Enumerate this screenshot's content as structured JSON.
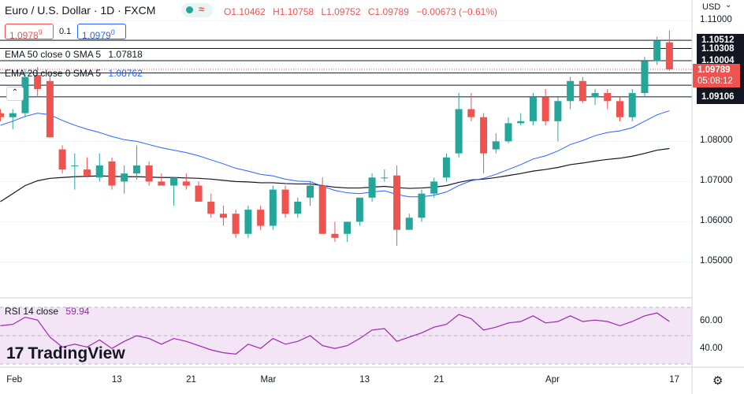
{
  "header": {
    "symbol": "Euro / U.S. Dollar · 1D · FXCM",
    "badge": "≈",
    "open": "O1.10462",
    "high": "H1.10758",
    "low": "L1.09752",
    "close": "C1.09789",
    "change": "−0.00673 (−0.61%)",
    "currency": "USD"
  },
  "order": {
    "sell": "1.0978",
    "sell_sup": "9",
    "spread": "0.1",
    "buy": "1.0979",
    "buy_sup": "0"
  },
  "indicators": {
    "ema50_label": "EMA 50 close 0 SMA 5",
    "ema50_value": "1.07818",
    "ema20_label": "EMA 20 close 0 SMA 5",
    "ema20_value": "1.08762",
    "rsi_label": "RSI 14 close",
    "rsi_value": "59.94"
  },
  "price_axis": {
    "ticks": [
      "1.11000",
      "1.08000",
      "1.07000",
      "1.06000",
      "1.05000"
    ],
    "levels": [
      "1.10512",
      "1.10308",
      "1.10004",
      "1.09699",
      "1.09394",
      "1.09106"
    ],
    "last_price": "1.09789",
    "countdown": "05:08:12"
  },
  "rsi_axis": {
    "ticks": [
      "60.00",
      "40.00"
    ]
  },
  "time_axis": {
    "labels": [
      "Feb",
      "13",
      "21",
      "Mar",
      "13",
      "21",
      "Apr",
      "17"
    ]
  },
  "branding": {
    "logo_mark": "17",
    "logo_text": "TradingView"
  },
  "colors": {
    "up": "#26a69a",
    "down": "#ef5350",
    "ema20": "#2962ff",
    "ema50": "#131722",
    "rsi": "#9c27b0",
    "rsi_band": "#f3e5f5"
  },
  "chart_data": {
    "type": "candlestick",
    "timeframe": "1D",
    "ylim": [
      1.045,
      1.112
    ],
    "candles": [
      {
        "o": 1.087,
        "h": 1.088,
        "l": 1.085,
        "c": 1.086
      },
      {
        "o": 1.086,
        "h": 1.088,
        "l": 1.083,
        "c": 1.087
      },
      {
        "o": 1.087,
        "h": 1.098,
        "l": 1.086,
        "c": 1.096
      },
      {
        "o": 1.0965,
        "h": 1.0985,
        "l": 1.091,
        "c": 1.093
      },
      {
        "o": 1.095,
        "h": 1.097,
        "l": 1.081,
        "c": 1.081
      },
      {
        "o": 1.078,
        "h": 1.079,
        "l": 1.072,
        "c": 1.073
      },
      {
        "o": 1.074,
        "h": 1.077,
        "l": 1.068,
        "c": 1.074
      },
      {
        "o": 1.073,
        "h": 1.076,
        "l": 1.071,
        "c": 1.0715
      },
      {
        "o": 1.071,
        "h": 1.077,
        "l": 1.07,
        "c": 1.074
      },
      {
        "o": 1.075,
        "h": 1.076,
        "l": 1.068,
        "c": 1.069
      },
      {
        "o": 1.07,
        "h": 1.074,
        "l": 1.067,
        "c": 1.072
      },
      {
        "o": 1.072,
        "h": 1.079,
        "l": 1.0705,
        "c": 1.074
      },
      {
        "o": 1.074,
        "h": 1.075,
        "l": 1.069,
        "c": 1.07
      },
      {
        "o": 1.07,
        "h": 1.072,
        "l": 1.069,
        "c": 1.069
      },
      {
        "o": 1.069,
        "h": 1.071,
        "l": 1.064,
        "c": 1.071
      },
      {
        "o": 1.07,
        "h": 1.072,
        "l": 1.068,
        "c": 1.069
      },
      {
        "o": 1.069,
        "h": 1.07,
        "l": 1.065,
        "c": 1.065
      },
      {
        "o": 1.065,
        "h": 1.067,
        "l": 1.061,
        "c": 1.062
      },
      {
        "o": 1.062,
        "h": 1.064,
        "l": 1.059,
        "c": 1.061
      },
      {
        "o": 1.062,
        "h": 1.063,
        "l": 1.056,
        "c": 1.057
      },
      {
        "o": 1.057,
        "h": 1.064,
        "l": 1.056,
        "c": 1.063
      },
      {
        "o": 1.063,
        "h": 1.064,
        "l": 1.058,
        "c": 1.059
      },
      {
        "o": 1.059,
        "h": 1.069,
        "l": 1.058,
        "c": 1.068
      },
      {
        "o": 1.068,
        "h": 1.069,
        "l": 1.061,
        "c": 1.062
      },
      {
        "o": 1.062,
        "h": 1.066,
        "l": 1.061,
        "c": 1.065
      },
      {
        "o": 1.066,
        "h": 1.07,
        "l": 1.064,
        "c": 1.069
      },
      {
        "o": 1.069,
        "h": 1.071,
        "l": 1.057,
        "c": 1.057
      },
      {
        "o": 1.057,
        "h": 1.06,
        "l": 1.055,
        "c": 1.056
      },
      {
        "o": 1.057,
        "h": 1.06,
        "l": 1.055,
        "c": 1.06
      },
      {
        "o": 1.06,
        "h": 1.066,
        "l": 1.059,
        "c": 1.066
      },
      {
        "o": 1.066,
        "h": 1.072,
        "l": 1.065,
        "c": 1.071
      },
      {
        "o": 1.071,
        "h": 1.073,
        "l": 1.07,
        "c": 1.071
      },
      {
        "o": 1.0715,
        "h": 1.074,
        "l": 1.054,
        "c": 1.058
      },
      {
        "o": 1.058,
        "h": 1.062,
        "l": 1.058,
        "c": 1.061
      },
      {
        "o": 1.061,
        "h": 1.068,
        "l": 1.06,
        "c": 1.067
      },
      {
        "o": 1.067,
        "h": 1.071,
        "l": 1.066,
        "c": 1.07
      },
      {
        "o": 1.071,
        "h": 1.077,
        "l": 1.07,
        "c": 1.076
      },
      {
        "o": 1.077,
        "h": 1.092,
        "l": 1.076,
        "c": 1.088
      },
      {
        "o": 1.088,
        "h": 1.092,
        "l": 1.085,
        "c": 1.086
      },
      {
        "o": 1.086,
        "h": 1.087,
        "l": 1.072,
        "c": 1.077
      },
      {
        "o": 1.078,
        "h": 1.082,
        "l": 1.077,
        "c": 1.08
      },
      {
        "o": 1.08,
        "h": 1.086,
        "l": 1.0795,
        "c": 1.0845
      },
      {
        "o": 1.0845,
        "h": 1.087,
        "l": 1.084,
        "c": 1.085
      },
      {
        "o": 1.085,
        "h": 1.092,
        "l": 1.084,
        "c": 1.091
      },
      {
        "o": 1.091,
        "h": 1.093,
        "l": 1.084,
        "c": 1.085
      },
      {
        "o": 1.085,
        "h": 1.091,
        "l": 1.08,
        "c": 1.09
      },
      {
        "o": 1.09,
        "h": 1.096,
        "l": 1.088,
        "c": 1.095
      },
      {
        "o": 1.095,
        "h": 1.096,
        "l": 1.0895,
        "c": 1.09
      },
      {
        "o": 1.091,
        "h": 1.093,
        "l": 1.089,
        "c": 1.092
      },
      {
        "o": 1.092,
        "h": 1.093,
        "l": 1.088,
        "c": 1.09
      },
      {
        "o": 1.09,
        "h": 1.091,
        "l": 1.085,
        "c": 1.086
      },
      {
        "o": 1.086,
        "h": 1.093,
        "l": 1.085,
        "c": 1.092
      },
      {
        "o": 1.092,
        "h": 1.101,
        "l": 1.091,
        "c": 1.1
      },
      {
        "o": 1.1,
        "h": 1.106,
        "l": 1.099,
        "c": 1.105
      },
      {
        "o": 1.10462,
        "h": 1.10758,
        "l": 1.09752,
        "c": 1.09789
      }
    ],
    "ema20": [
      1.084,
      1.085,
      1.0862,
      1.087,
      1.0866,
      1.0852,
      1.084,
      1.083,
      1.0822,
      1.0812,
      1.0804,
      1.08,
      1.0792,
      1.0784,
      1.0778,
      1.0772,
      1.0764,
      1.0754,
      1.0744,
      1.0733,
      1.0726,
      1.0718,
      1.0714,
      1.0706,
      1.0701,
      1.07,
      1.0688,
      1.0678,
      1.0672,
      1.067,
      1.0674,
      1.0677,
      1.0668,
      1.0662,
      1.0662,
      1.0666,
      1.0674,
      1.069,
      1.0702,
      1.0708,
      1.0718,
      1.073,
      1.0742,
      1.0756,
      1.0764,
      1.0776,
      1.0792,
      1.0802,
      1.0814,
      1.0822,
      1.0826,
      1.0834,
      1.085,
      1.0866,
      1.0876
    ],
    "ema50": [
      1.065,
      1.067,
      1.069,
      1.0702,
      1.0708,
      1.071,
      1.0712,
      1.0713,
      1.0714,
      1.0713,
      1.0712,
      1.0712,
      1.0711,
      1.071,
      1.071,
      1.0709,
      1.0708,
      1.0706,
      1.0703,
      1.07,
      1.0699,
      1.0697,
      1.0697,
      1.0695,
      1.0694,
      1.0694,
      1.069,
      1.0686,
      1.0684,
      1.0684,
      1.0686,
      1.0688,
      1.0685,
      1.0683,
      1.0684,
      1.0686,
      1.069,
      1.0698,
      1.0704,
      1.0706,
      1.071,
      1.0715,
      1.072,
      1.0726,
      1.073,
      1.0735,
      1.0742,
      1.0746,
      1.0751,
      1.0755,
      1.0758,
      1.0763,
      1.077,
      1.0778,
      1.0782
    ],
    "rsi": [
      57,
      58,
      63,
      61,
      49,
      42,
      44,
      42,
      47,
      41,
      46,
      50,
      48,
      44,
      48,
      46,
      43,
      40,
      38,
      37,
      44,
      41,
      48,
      44,
      46,
      50,
      43,
      41,
      43,
      48,
      54,
      55,
      46,
      49,
      52,
      56,
      58,
      65,
      62,
      54,
      56,
      59,
      60,
      64,
      59,
      60,
      64,
      60,
      61,
      60,
      57,
      60,
      64,
      66,
      60
    ],
    "rsi_ylim": [
      30,
      70
    ],
    "price_levels": [
      1.10512,
      1.10308,
      1.10004,
      1.09699,
      1.09394,
      1.09106
    ]
  }
}
